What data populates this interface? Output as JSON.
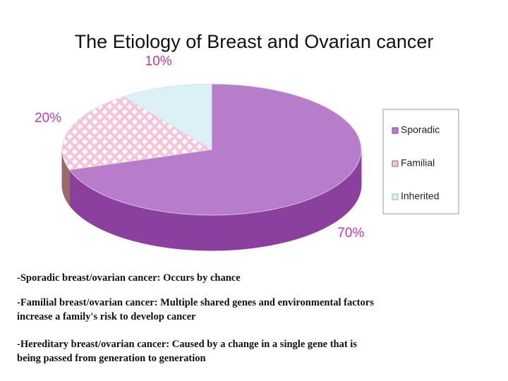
{
  "chart_data": {
    "type": "pie",
    "title": "The Etiology of Breast and Ovarian cancer",
    "categories": [
      "Sporadic",
      "Familial",
      "Inherited"
    ],
    "values": [
      70,
      20,
      10
    ],
    "value_labels": [
      "70%",
      "20%",
      "10%"
    ],
    "colors": [
      "#b77cca",
      "#f7c3d9",
      "#dcf0f8"
    ],
    "side_colors": [
      "#8b3f9f",
      "#9a6a6a",
      "#9ab0b8"
    ],
    "label_color": "#c23aa0",
    "legend": "right"
  },
  "notes": [
    [
      "-Sporadic breast/ovarian cancer:  Occurs by chance"
    ],
    [
      "-Familial breast/ovarian cancer:  Multiple shared genes and environmental factors",
      "increase a family's risk to develop cancer"
    ],
    [
      "-Hereditary breast/ovarian cancer:  Caused by a change in a single gene that is",
      "being passed from generation to generation"
    ]
  ]
}
